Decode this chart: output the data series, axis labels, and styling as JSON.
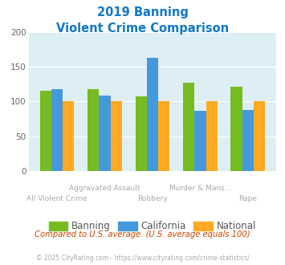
{
  "title_line1": "2019 Banning",
  "title_line2": "Violent Crime Comparison",
  "x_labels_top": [
    "",
    "Aggravated Assault",
    "",
    "Murder & Mans...",
    ""
  ],
  "x_labels_bottom": [
    "All Violent Crime",
    "",
    "Robbery",
    "",
    "Rape"
  ],
  "banning": [
    115,
    117,
    107,
    127,
    121
  ],
  "california": [
    118,
    108,
    163,
    86,
    87
  ],
  "national": [
    100,
    100,
    100,
    100,
    100
  ],
  "banning_color": "#77bb22",
  "california_color": "#4499dd",
  "national_color": "#ffaa22",
  "bg_color": "#ddeef5",
  "ylim": [
    0,
    200
  ],
  "yticks": [
    0,
    50,
    100,
    150,
    200
  ],
  "title_color": "#1177cc",
  "subtitle_note": "Compared to U.S. average. (U.S. average equals 100)",
  "footer": "© 2025 CityRating.com - https://www.cityrating.com/crime-statistics/",
  "legend_labels": [
    "Banning",
    "California",
    "National"
  ],
  "label_color": "#aaaaaa",
  "subtitle_color": "#cc4400",
  "footer_color": "#aaaaaa"
}
